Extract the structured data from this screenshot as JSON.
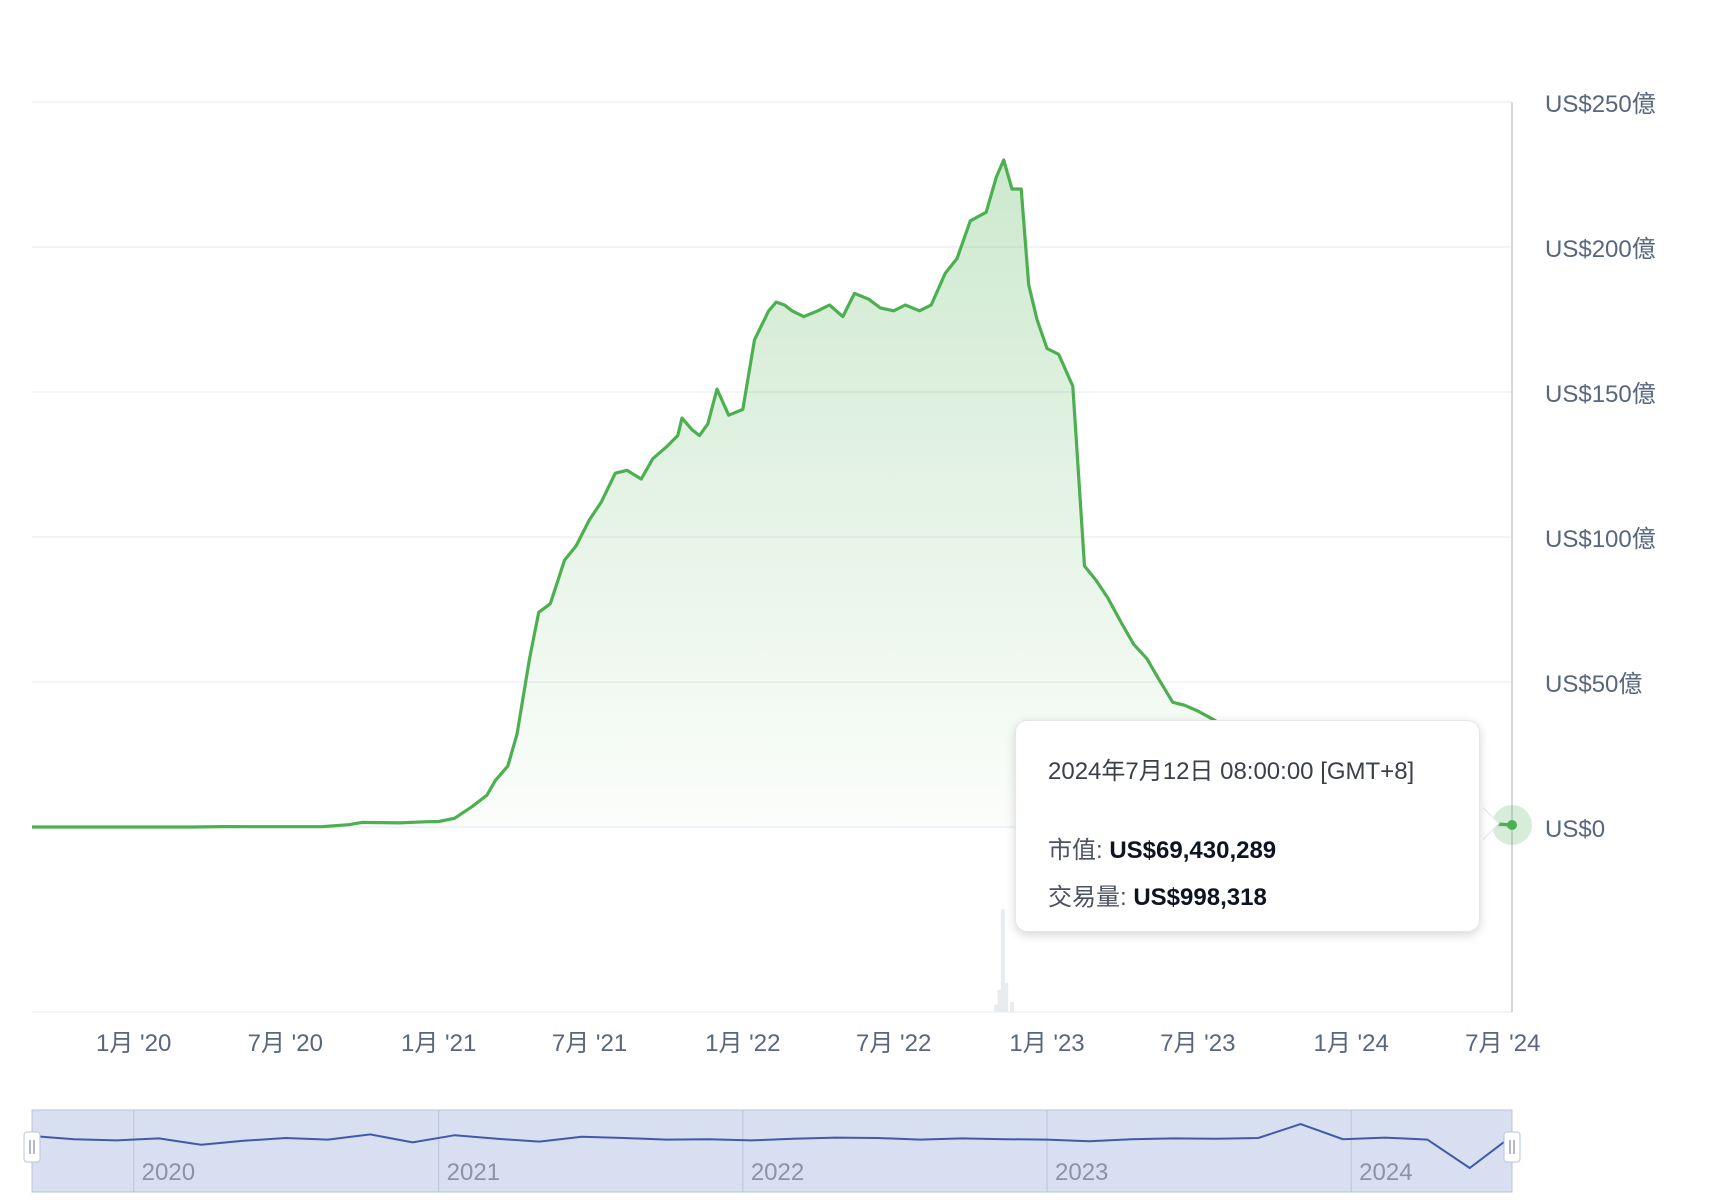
{
  "chart_data": {
    "type": "area",
    "series": [
      {
        "color": "#4caf50",
        "x": [
          "2019-09-01",
          "2020-03-15",
          "2020-04-15",
          "2020-06-01",
          "2020-07-15",
          "2020-08-15",
          "2020-09-15",
          "2020-10-01",
          "2020-10-20",
          "2020-11-15",
          "2020-12-15",
          "2021-01-01",
          "2021-01-20",
          "2021-02-10",
          "2021-02-28",
          "2021-03-10",
          "2021-03-25",
          "2021-04-05",
          "2021-04-20",
          "2021-05-01",
          "2021-05-15",
          "2021-06-01",
          "2021-06-15",
          "2021-07-01",
          "2021-07-15",
          "2021-08-01",
          "2021-08-15",
          "2021-09-01",
          "2021-09-15",
          "2021-10-01",
          "2021-10-15",
          "2021-10-20",
          "2021-11-01",
          "2021-11-10",
          "2021-11-20",
          "2021-12-01",
          "2021-12-15",
          "2022-01-01",
          "2022-01-15",
          "2022-02-01",
          "2022-02-10",
          "2022-02-20",
          "2022-03-01",
          "2022-03-15",
          "2022-04-01",
          "2022-04-15",
          "2022-05-01",
          "2022-05-15",
          "2022-06-01",
          "2022-06-15",
          "2022-07-01",
          "2022-07-15",
          "2022-08-01",
          "2022-08-15",
          "2022-09-01",
          "2022-09-15",
          "2022-10-01",
          "2022-10-20",
          "2022-11-01",
          "2022-11-10",
          "2022-11-20",
          "2022-12-01",
          "2022-12-10",
          "2022-12-20",
          "2023-01-01",
          "2023-01-15",
          "2023-02-01",
          "2023-02-15",
          "2023-03-01",
          "2023-03-15",
          "2023-04-01",
          "2023-04-15",
          "2023-05-01",
          "2023-05-15",
          "2023-06-01",
          "2023-06-15",
          "2023-07-01",
          "2023-07-20",
          "2023-08-15",
          "2023-09-15",
          "2023-10-15",
          "2023-11-15",
          "2023-12-15",
          "2024-01-15",
          "2024-02-15",
          "2024-03-15",
          "2024-04-15",
          "2024-05-15",
          "2024-06-15",
          "2024-07-12"
        ],
        "y": [
          0,
          0,
          0.15,
          0.12,
          0.1,
          0.15,
          0.8,
          1.6,
          1.5,
          1.4,
          1.8,
          1.9,
          3,
          7,
          11,
          16,
          21,
          32,
          58,
          74,
          77,
          92,
          97,
          106,
          112,
          122,
          123,
          120,
          127,
          131,
          135,
          141,
          137,
          135,
          139,
          151,
          142,
          144,
          168,
          178,
          181,
          180,
          178,
          176,
          178,
          180,
          176,
          184,
          182,
          179,
          178,
          180,
          178,
          180,
          191,
          196,
          209,
          212,
          224,
          230,
          220,
          220,
          187,
          175,
          165,
          163,
          152,
          90,
          85,
          79,
          70,
          63,
          58,
          51,
          43,
          42,
          40,
          37,
          32,
          27,
          22,
          18,
          14,
          11,
          8,
          6,
          4,
          2.5,
          1.2,
          0.69
        ]
      }
    ],
    "volume": {
      "color": "#e8ecf0",
      "x": [
        "2022-11-01",
        "2022-11-05",
        "2022-11-09",
        "2022-11-13",
        "2022-11-20"
      ],
      "y": [
        0.6,
        1.8,
        8.4,
        2.4,
        0.8
      ]
    },
    "ylim": [
      0,
      250
    ],
    "y_ticks": [
      0,
      50,
      100,
      150,
      200,
      250
    ],
    "y_tick_labels": [
      "US$0",
      "US$50億",
      "US$100億",
      "US$150億",
      "US$200億",
      "US$250億"
    ],
    "x_tick_labels": [
      "1月 '20",
      "7月 '20",
      "1月 '21",
      "7月 '21",
      "1月 '22",
      "7月 '22",
      "1月 '23",
      "7月 '23",
      "1月 '24",
      "7月 '24"
    ],
    "x_tick_dates": [
      "2020-01-01",
      "2020-07-01",
      "2021-01-01",
      "2021-07-01",
      "2022-01-01",
      "2022-07-01",
      "2023-01-01",
      "2023-07-01",
      "2024-01-01",
      "2024-07-01"
    ],
    "grid": true,
    "navigator": {
      "year_labels": [
        "2020",
        "2021",
        "2022",
        "2023",
        "2024"
      ],
      "line_color": "#3f5aa9",
      "fill_color": "#d8dff0",
      "y": [
        1.0,
        0.2,
        -0.1,
        0.4,
        -1.2,
        -0.2,
        0.5,
        0.1,
        1.4,
        -0.6,
        1.2,
        0.3,
        -0.4,
        0.8,
        0.5,
        0.1,
        0.2,
        -0.1,
        0.3,
        0.6,
        0.5,
        0.1,
        0.4,
        0.2,
        0.1,
        -0.3,
        0.2,
        0.4,
        0.3,
        0.5,
        4.0,
        0.2,
        0.6,
        0.1,
        -7.0,
        1.0
      ]
    }
  },
  "tooltip": {
    "date": "2024年7月12日 08:00:00 [GMT+8]",
    "market_cap_label": "市值: ",
    "market_cap_value": "US$69,430,289",
    "volume_label": "交易量: ",
    "volume_value": "US$998,318"
  }
}
